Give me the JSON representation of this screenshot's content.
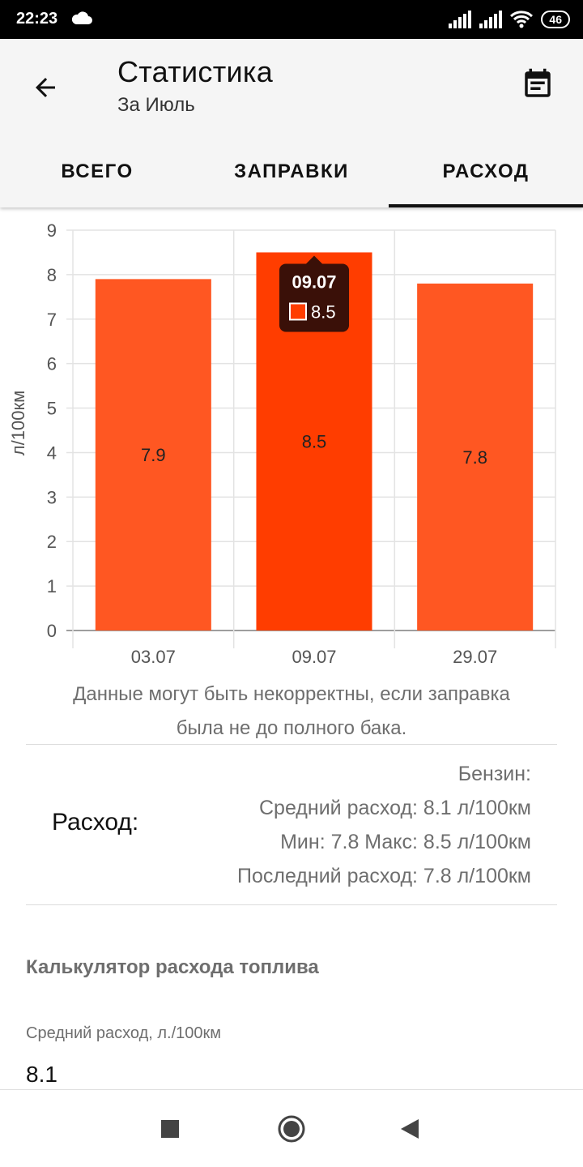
{
  "status_bar": {
    "time": "22:23",
    "battery": "46",
    "icons": [
      "cloud-icon",
      "signal-icon",
      "signal-icon",
      "wifi-icon",
      "battery-icon"
    ]
  },
  "header": {
    "title": "Статистика",
    "subtitle": "За Июль",
    "back_icon": "arrow-left-icon",
    "calendar_icon": "calendar-icon"
  },
  "tabs": [
    {
      "label": "ВСЕГО",
      "active": false
    },
    {
      "label": "ЗАПРАВКИ",
      "active": false
    },
    {
      "label": "РАСХОД",
      "active": true
    }
  ],
  "chart_data": {
    "type": "bar",
    "categories": [
      "03.07",
      "09.07",
      "29.07"
    ],
    "values": [
      7.9,
      8.5,
      7.8
    ],
    "ylabel": "л/100км",
    "ylim": [
      0,
      9
    ],
    "yticks": [
      "0",
      "1",
      "2",
      "3",
      "4",
      "5",
      "6",
      "7",
      "8",
      "9"
    ],
    "grid": true,
    "highlighted_index": 1,
    "tooltip": {
      "title": "09.07",
      "value": "8.5"
    },
    "colors": {
      "bar": "#ff5722",
      "bar_highlight": "#ff3d00",
      "tooltip_bg": "#3a1008"
    }
  },
  "note": {
    "line1": "Данные могут быть некорректны, если заправка",
    "line2": "была не до полного бака."
  },
  "consumption": {
    "label": "Расход:",
    "fuel_type": "Бензин:",
    "average": "Средний расход: 8.1 л/100км",
    "min_max": "Мин: 7.8 Макс: 8.5 л/100км",
    "last": "Последний расход: 7.8 л/100км"
  },
  "calculator": {
    "title": "Калькулятор расхода топлива",
    "field_label": "Средний расход, л./100км",
    "field_value": "8.1"
  },
  "nav_bar": {
    "icons": [
      "square-icon",
      "circle-icon",
      "triangle-back-icon"
    ]
  }
}
